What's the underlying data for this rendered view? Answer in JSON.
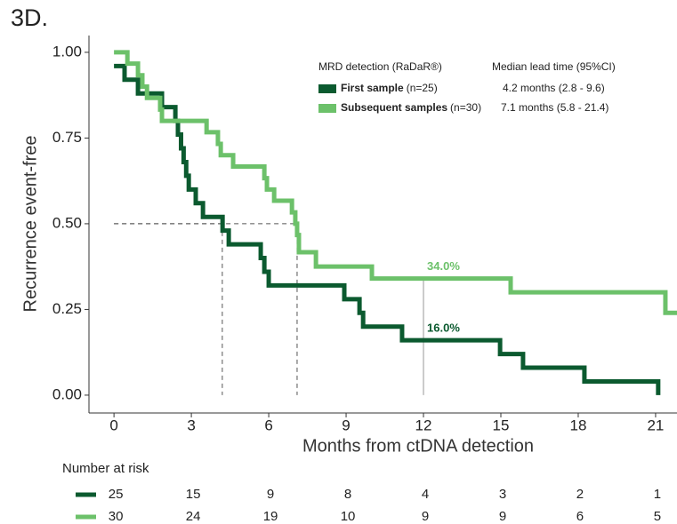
{
  "chart_data": {
    "type": "step",
    "title": "3D.",
    "x_label": "Months from ctDNA detection",
    "y_label": "Recurrence event-free",
    "xlim": [
      -0.97,
      21.83
    ],
    "ylim": [
      -0.052,
      1.049
    ],
    "xticks": [
      0,
      3,
      6,
      9,
      12,
      15,
      18,
      21
    ],
    "yticks": [
      {
        "value": 0,
        "label": "0.00"
      },
      {
        "value": 0.25,
        "label": "0.25"
      },
      {
        "value": 0.5,
        "label": "0.50"
      },
      {
        "value": 0.75,
        "label": "0.75"
      },
      {
        "value": 1,
        "label": "1.00"
      }
    ],
    "legend_title": "MRD detection (RaDaR®)",
    "legend_title_right": "Median lead time (95%CI)",
    "series": [
      {
        "name": "First sample",
        "n_label": "(n=25)",
        "lead_time": "4.2 months (2.8 - 9.6)",
        "color": "#0b5a2f",
        "x": [
          0,
          0.41,
          0.93,
          1.86,
          2.38,
          2.48,
          2.6,
          2.7,
          2.8,
          2.9,
          3.17,
          3.45,
          4.21,
          4.45,
          5.69,
          5.83,
          6.0,
          8.93,
          9.52,
          9.66,
          11.17,
          14.97,
          15.86,
          18.24,
          21.1
        ],
        "values": [
          0.96,
          0.92,
          0.88,
          0.84,
          0.8,
          0.76,
          0.72,
          0.68,
          0.64,
          0.6,
          0.56,
          0.52,
          0.48,
          0.44,
          0.4,
          0.36,
          0.32,
          0.28,
          0.24,
          0.2,
          0.16,
          0.12,
          0.08,
          0.04,
          0
        ]
      },
      {
        "name": "Subsequent samples",
        "n_label": "(n=30)",
        "lead_time": "7.1 months (5.8 - 21.4)",
        "color": "#6cc16a",
        "x": [
          0,
          0.52,
          0.93,
          1.1,
          1.28,
          1.79,
          1.86,
          3.59,
          4.03,
          4.14,
          4.62,
          5.83,
          5.93,
          6.21,
          6.9,
          7.03,
          7.1,
          7.17,
          7.83,
          10.0,
          15.38,
          21.38,
          21.83
        ],
        "values": [
          1.0,
          0.967,
          0.933,
          0.9,
          0.867,
          0.833,
          0.8,
          0.767,
          0.733,
          0.7,
          0.667,
          0.633,
          0.6,
          0.567,
          0.533,
          0.5,
          0.467,
          0.417,
          0.375,
          0.34,
          0.3,
          0.24,
          0.24
        ]
      }
    ],
    "median_lines": [
      {
        "x": 4.2,
        "y": 0.5
      },
      {
        "x": 7.1,
        "y": 0.5
      }
    ],
    "annotations": [
      {
        "text": "34.0%",
        "x": 12,
        "y": 0.34,
        "color": "#6cc16a"
      },
      {
        "text": "16.0%",
        "x": 12,
        "y": 0.16,
        "color": "#0b5a2f"
      }
    ],
    "risk_table": {
      "title": "Number at risk",
      "rows": [
        [
          25,
          15,
          9,
          8,
          4,
          3,
          2,
          1
        ],
        [
          30,
          24,
          19,
          10,
          9,
          9,
          6,
          5
        ]
      ]
    }
  }
}
